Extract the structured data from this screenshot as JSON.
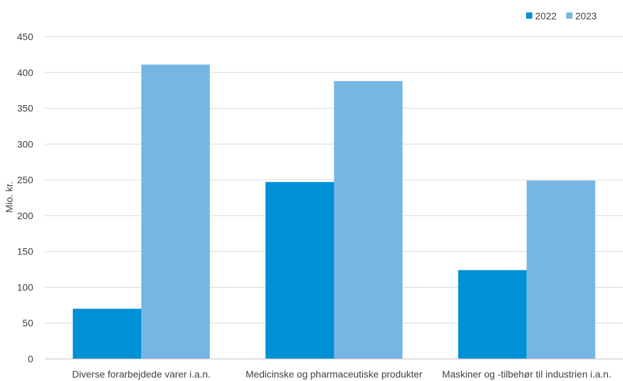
{
  "chart_data": {
    "type": "bar",
    "categories": [
      "Diverse forarbejdede varer i.a.n.",
      "Medicinske og pharmaceutiske produkter",
      "Maskiner og -tilbehør til industrien i.a.n."
    ],
    "series": [
      {
        "name": "2022",
        "values": [
          70,
          247,
          124
        ],
        "color": "#0090d6"
      },
      {
        "name": "2023",
        "values": [
          411,
          388,
          249
        ],
        "color": "#76b6e4"
      }
    ],
    "ylabel": "Mio. kr.",
    "ylim": [
      0,
      450
    ],
    "yticks": [
      0,
      50,
      100,
      150,
      200,
      250,
      300,
      350,
      400,
      450
    ],
    "grid": true,
    "legend": "top-right",
    "gridColor": "#d9d9d9",
    "axisColor": "#bfbfbf"
  }
}
